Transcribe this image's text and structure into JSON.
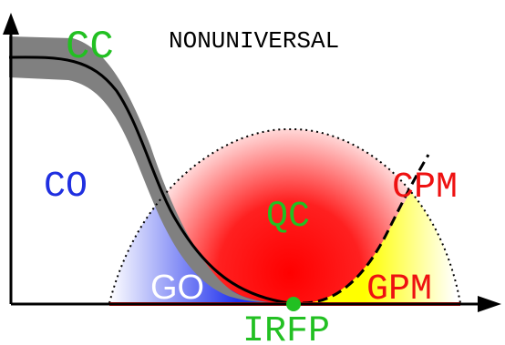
{
  "labels": {
    "cc": "CC",
    "nonuniversal": "NONUNIVERSAL",
    "co": "CO",
    "qc": "QC",
    "cpm": "CPM",
    "go": "GO",
    "gpm": "GPM",
    "irfp": "IRFP"
  },
  "colors": {
    "cc": "#22c022",
    "qc": "#22c022",
    "irfp": "#22c022",
    "nonuniversal": "#000000",
    "co": "#1f2fe0",
    "cpm": "#ee1111",
    "go": "#ffffff",
    "gpm": "#ee1111",
    "qc_region": "#ff0000",
    "go_region": "#2233ee",
    "gpm_region": "#ffff00",
    "baseline": "#ee1111",
    "band": "#808080",
    "fixed_point": "#22c022"
  }
}
